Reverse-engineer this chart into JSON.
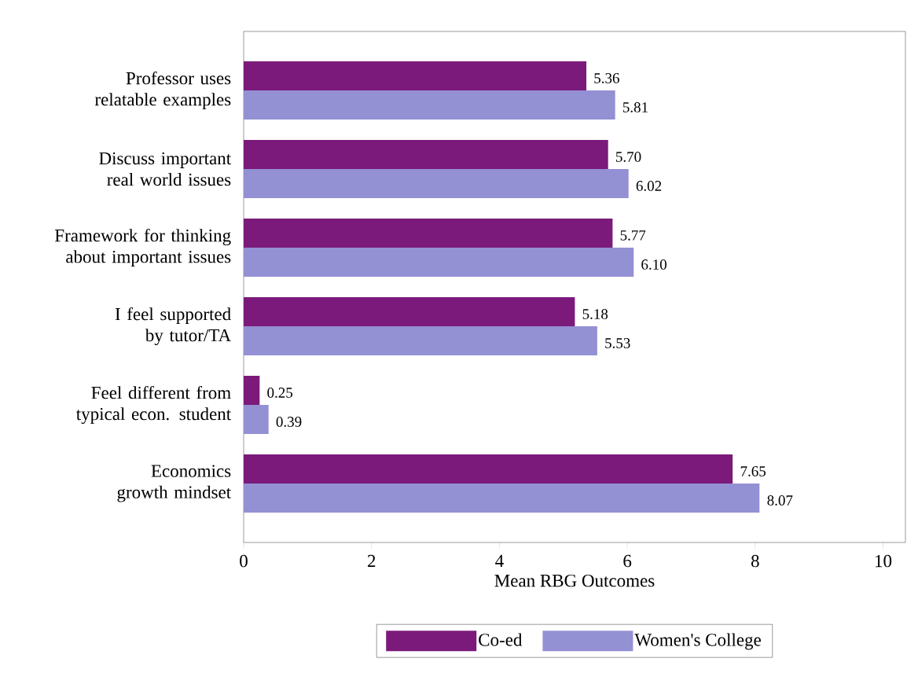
{
  "chart_data": {
    "type": "bar",
    "orientation": "horizontal",
    "xlabel": "Mean RBG Outcomes",
    "categories": [
      "Professor uses relatable examples",
      "Discuss important real world issues",
      "Framework for thinking about important issues",
      "I feel supported by tutor/TA",
      "Feel different from typical econ. student",
      "Economics growth mindset"
    ],
    "series": [
      {
        "name": "Co-ed",
        "color": "#7b1a7b",
        "values": [
          5.36,
          5.7,
          5.77,
          5.18,
          0.25,
          7.65
        ],
        "value_labels": [
          "5.36",
          "5.70",
          "5.77",
          "5.18",
          "0.25",
          "7.65"
        ]
      },
      {
        "name": "Women's College",
        "color": "#9490d4",
        "values": [
          5.81,
          6.02,
          6.1,
          5.53,
          0.39,
          8.07
        ],
        "value_labels": [
          "5.81",
          "6.02",
          "6.10",
          "5.53",
          "0.39",
          "8.07"
        ]
      }
    ],
    "xlim": [
      0,
      10.35
    ],
    "xticks": [
      0,
      2,
      4,
      6,
      8,
      10
    ],
    "grid": false,
    "legend": "bottom"
  }
}
